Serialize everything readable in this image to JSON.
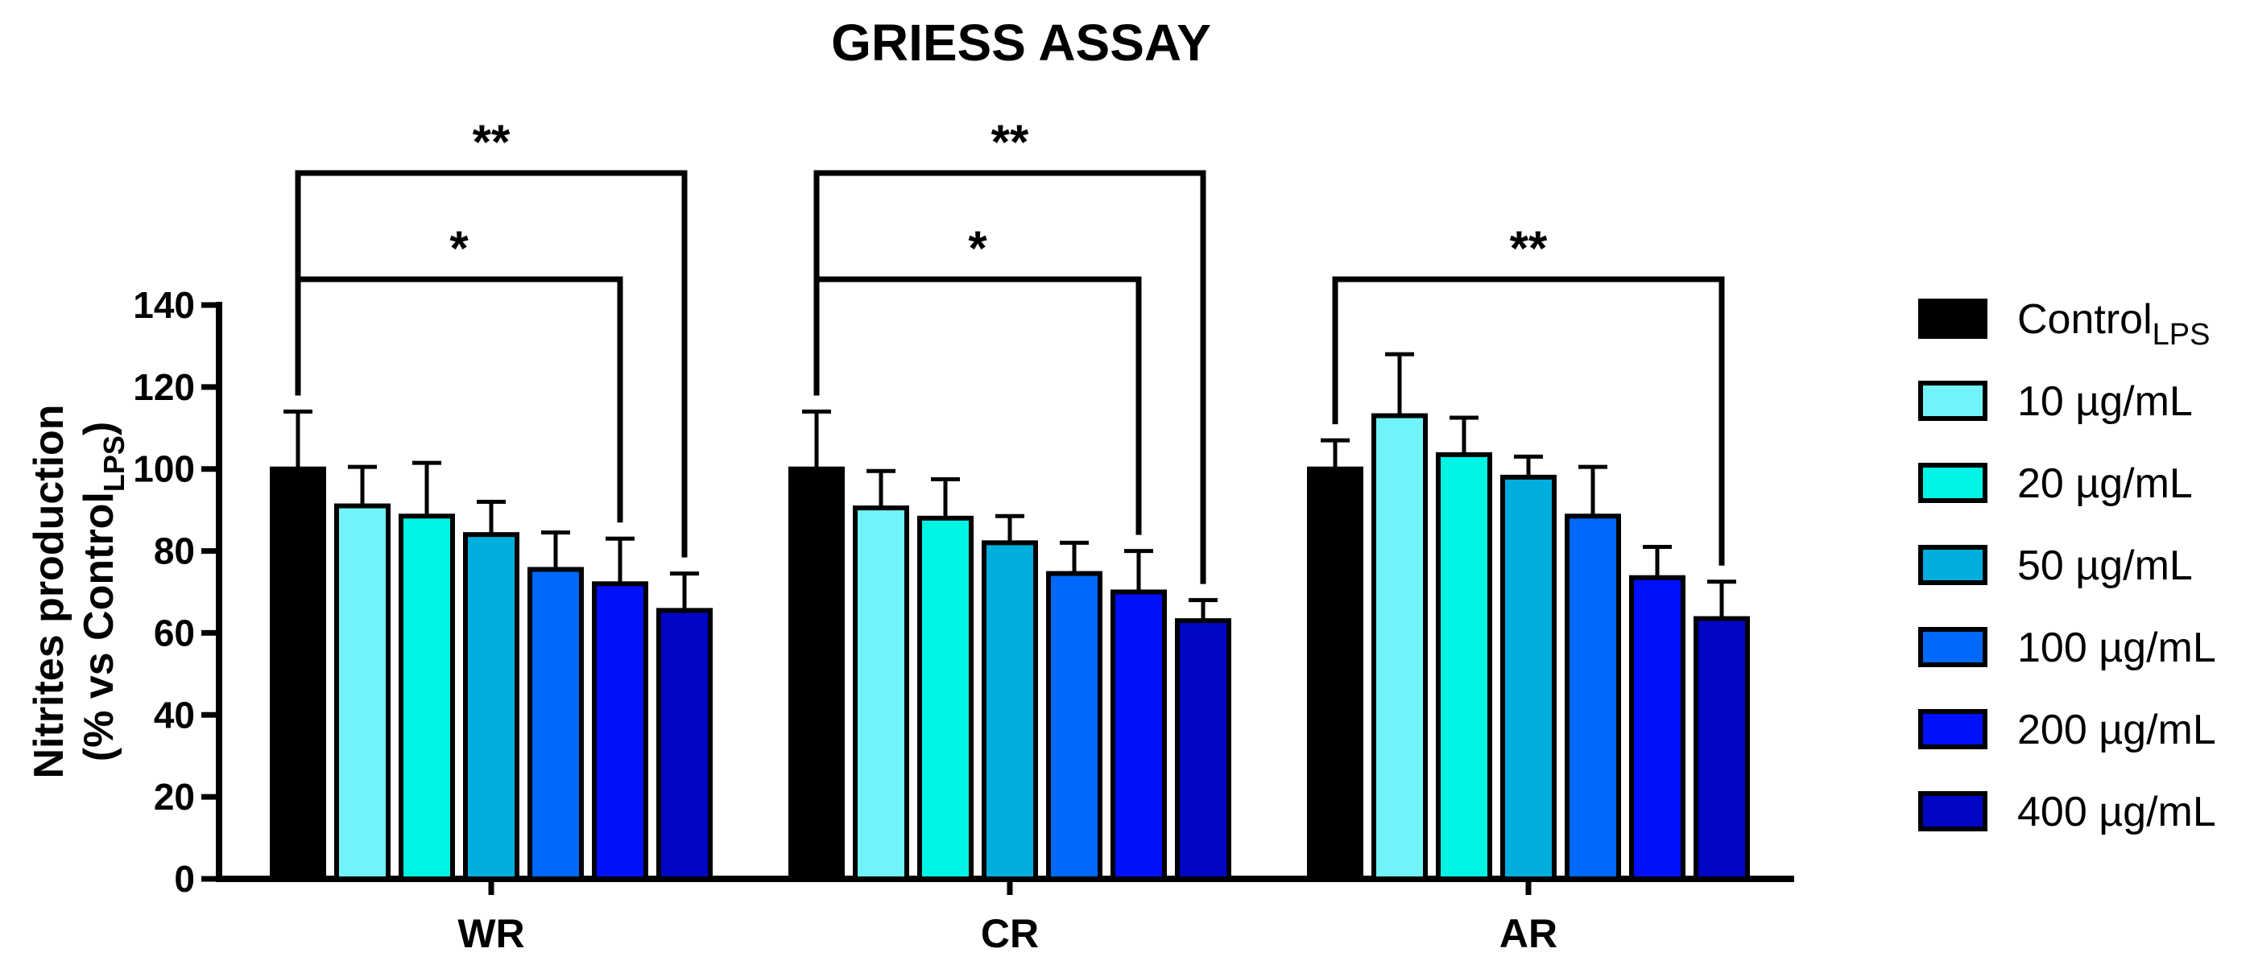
{
  "chart_data": {
    "type": "bar",
    "title": "GRIESS ASSAY",
    "ylabel_line1": "Nitrites production",
    "ylabel_line2_prefix": "(% vs Control",
    "ylabel_line2_sub": "LPS",
    "ylabel_line2_suffix": ")",
    "xlabel": "",
    "ylim": [
      0,
      140
    ],
    "yticks": [
      0,
      20,
      40,
      60,
      80,
      100,
      120,
      140
    ],
    "categories": [
      "WR",
      "CR",
      "AR"
    ],
    "series": [
      {
        "name": "Control",
        "sub": "LPS",
        "color": "#000000",
        "values": [
          100,
          100,
          100
        ],
        "errors": [
          14,
          14,
          7
        ]
      },
      {
        "name": "10 µg/mL",
        "color": "#70F4FA",
        "values": [
          91,
          90.5,
          113
        ],
        "errors": [
          9.5,
          9,
          15
        ]
      },
      {
        "name": "20 µg/mL",
        "color": "#00F4E4",
        "values": [
          88.5,
          88,
          103.5
        ],
        "errors": [
          13,
          9.5,
          9
        ]
      },
      {
        "name": "50 µg/mL",
        "color": "#00AEDD",
        "values": [
          84,
          82,
          98
        ],
        "errors": [
          8,
          6.5,
          5
        ]
      },
      {
        "name": "100 µg/mL",
        "color": "#0068FA",
        "values": [
          75.5,
          74.5,
          88.5
        ],
        "errors": [
          9,
          7.5,
          12
        ]
      },
      {
        "name": "200 µg/mL",
        "color": "#0010FA",
        "values": [
          72,
          70,
          73.5
        ],
        "errors": [
          11,
          10,
          7.5
        ]
      },
      {
        "name": "400 µg/mL",
        "color": "#0006C4",
        "values": [
          65.5,
          63,
          63.5
        ],
        "errors": [
          9,
          5,
          9
        ]
      }
    ],
    "significance": [
      {
        "group": 0,
        "from_series": 0,
        "to_series": 6,
        "label": "**",
        "level": 2
      },
      {
        "group": 0,
        "from_series": 0,
        "to_series": 5,
        "label": "*",
        "level": 1
      },
      {
        "group": 1,
        "from_series": 0,
        "to_series": 6,
        "label": "**",
        "level": 2
      },
      {
        "group": 1,
        "from_series": 0,
        "to_series": 5,
        "label": "*",
        "level": 1
      },
      {
        "group": 2,
        "from_series": 0,
        "to_series": 6,
        "label": "**",
        "level": 1
      }
    ],
    "legend_position": "right"
  }
}
